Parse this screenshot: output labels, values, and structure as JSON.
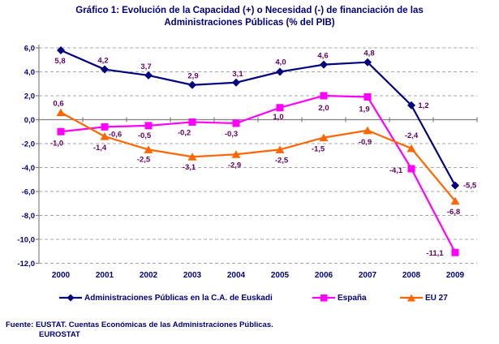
{
  "title": "Gráfico 1: Evolución de la Capacidad (+) o Necesidad (-) de financiación de las Administraciones Públicas (% del PIB)",
  "chart_data": {
    "type": "line",
    "categories": [
      "2000",
      "2001",
      "2002",
      "2003",
      "2004",
      "2005",
      "2006",
      "2007",
      "2008",
      "2009"
    ],
    "series": [
      {
        "name": "Administraciones Públicas en la C.A. de Euskadi",
        "color": "#000080",
        "marker": "diamond",
        "values": [
          5.8,
          4.2,
          3.7,
          2.9,
          3.1,
          4.0,
          4.6,
          4.8,
          1.2,
          -5.5
        ]
      },
      {
        "name": "España",
        "color": "#FF00FF",
        "marker": "square",
        "values": [
          -1.0,
          -0.6,
          -0.5,
          -0.2,
          -0.3,
          1.0,
          2.0,
          1.9,
          -4.1,
          -11.1
        ]
      },
      {
        "name": "EU 27",
        "color": "#FF6600",
        "marker": "triangle",
        "values": [
          0.6,
          -1.4,
          -2.5,
          -3.1,
          -2.9,
          -2.5,
          -1.5,
          -0.9,
          -2.4,
          -6.8
        ]
      }
    ],
    "ylim": [
      -12,
      6
    ],
    "ytick_step": 2,
    "decimal_separator": ",",
    "grid": "horizontal-dashed",
    "legend_position": "bottom",
    "data_labels": true,
    "colors": {
      "axis": "#808080",
      "gridline": "#A6A6A6",
      "data_label": "#660066",
      "axis_label": "#000080"
    }
  },
  "footer": {
    "line1": "Fuente: EUSTAT. Cuentas Económicas de las Administraciones Públicas.",
    "line2": "EUROSTAT"
  }
}
